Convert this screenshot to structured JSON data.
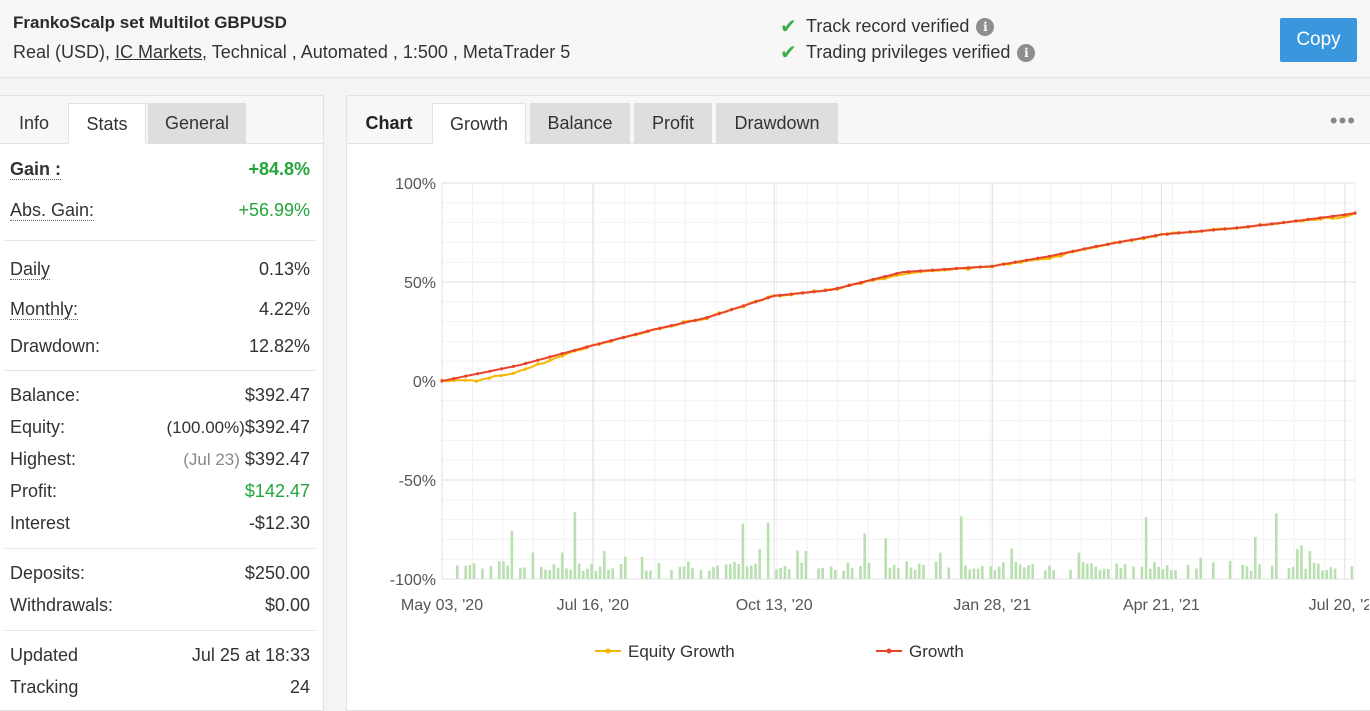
{
  "header": {
    "title": "FrankoScalp set Multilot GBPUSD",
    "account_type": "Real (USD),",
    "broker": "IC Markets",
    "details": ", Technical , Automated , 1:500 , MetaTrader 5",
    "verify": [
      {
        "label": "Track record verified"
      },
      {
        "label": "Trading privileges verified"
      }
    ],
    "copy_label": "Copy"
  },
  "left_tabs": [
    "Info",
    "Stats",
    "General"
  ],
  "stats": {
    "gain": {
      "label": "Gain :",
      "value": "+84.8%"
    },
    "abs_gain": {
      "label": "Abs. Gain:",
      "value": "+56.99%"
    },
    "daily": {
      "label": "Daily",
      "value": "0.13%"
    },
    "monthly": {
      "label": "Monthly:",
      "value": "4.22%"
    },
    "drawdown": {
      "label": "Drawdown:",
      "value": "12.82%"
    },
    "balance": {
      "label": "Balance:",
      "value": "$392.47"
    },
    "equity": {
      "label": "Equity:",
      "pct": "(100.00%)",
      "value": "$392.47"
    },
    "highest": {
      "label": "Highest:",
      "date": "(Jul 23)",
      "value": "$392.47"
    },
    "profit": {
      "label": "Profit:",
      "value": "$142.47"
    },
    "interest": {
      "label": "Interest",
      "value": "-$12.30"
    },
    "deposits": {
      "label": "Deposits:",
      "value": "$250.00"
    },
    "withdrawals": {
      "label": "Withdrawals:",
      "value": "$0.00"
    },
    "updated": {
      "label": "Updated",
      "value": "Jul 25 at 18:33"
    },
    "tracking": {
      "label": "Tracking",
      "value": "24"
    }
  },
  "chart_tabs": [
    "Chart",
    "Growth",
    "Balance",
    "Profit",
    "Drawdown"
  ],
  "colors": {
    "growth": "#e8452c",
    "equity": "#f5b800",
    "volume": "#b8e0b0",
    "accent": "#3a97de",
    "positive": "#22a53a"
  },
  "chart_data": {
    "type": "line",
    "y_ticks": [
      "100%",
      "50%",
      "0%",
      "-50%",
      "-100%"
    ],
    "ylim": [
      -100,
      100
    ],
    "x_ticks": [
      "May 03, '20",
      "Jul 16, '20",
      "Oct 13, '20",
      "Jan 28, '21",
      "Apr 21, '21",
      "Jul 20, '21"
    ],
    "legend": [
      "Equity Growth",
      "Growth"
    ],
    "series": [
      {
        "name": "Growth",
        "x": [
          "2020-05-03",
          "2020-06-10",
          "2020-07-16",
          "2020-08-15",
          "2020-09-10",
          "2020-10-13",
          "2020-11-10",
          "2020-12-15",
          "2021-01-28",
          "2021-02-25",
          "2021-03-20",
          "2021-04-21",
          "2021-05-25",
          "2021-06-20",
          "2021-07-20",
          "2021-07-25"
        ],
        "values": [
          0,
          8,
          18,
          26,
          32,
          43,
          46,
          55,
          58,
          63,
          68,
          74,
          77,
          80,
          84,
          84.8
        ]
      },
      {
        "name": "Equity Growth",
        "x": [
          "2020-05-03",
          "2020-05-20",
          "2020-06-10",
          "2020-07-16",
          "2020-08-15",
          "2020-09-10",
          "2020-10-13",
          "2020-11-10",
          "2020-12-15",
          "2021-01-28",
          "2021-02-25",
          "2021-03-20",
          "2021-04-21",
          "2021-05-25",
          "2021-06-20",
          "2021-07-20",
          "2021-07-25"
        ],
        "values": [
          0,
          0,
          5,
          18,
          26,
          32,
          43,
          46,
          54,
          58,
          62,
          68,
          74,
          77,
          80,
          83,
          84.8
        ]
      }
    ]
  }
}
